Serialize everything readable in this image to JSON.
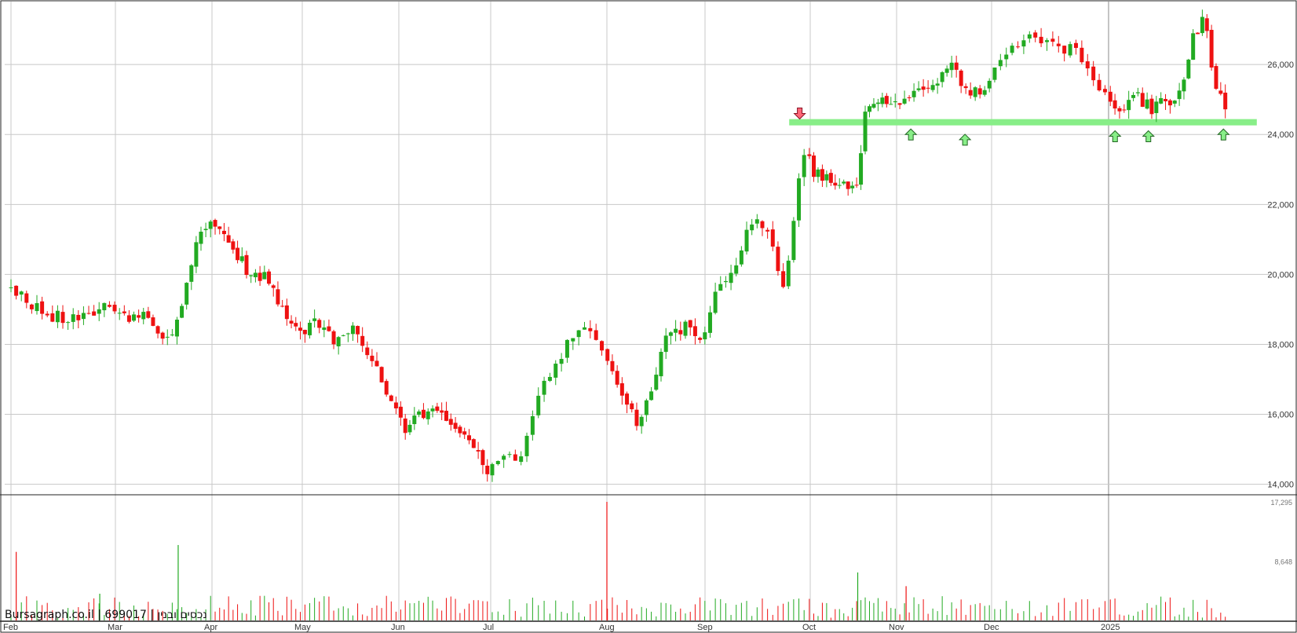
{
  "watermark": "Bursagraph.co.il | 699017 | נכסים ובנין",
  "chart_data": {
    "type": "candlestick",
    "title": "",
    "x_axis": {
      "tick_labels": [
        "Feb",
        "Mar",
        "Apr",
        "May",
        "Jun",
        "Jul",
        "Aug",
        "Sep",
        "Oct",
        "Nov",
        "Dec",
        "2025"
      ]
    },
    "price_axis": {
      "range": [
        13700,
        27800
      ],
      "ticks": [
        14000,
        16000,
        18000,
        20000,
        22000,
        24000,
        26000
      ],
      "tick_labels": [
        "14,000",
        "16,000",
        "18,000",
        "20,000",
        "22,000",
        "24,000",
        "26,000"
      ],
      "position": "right"
    },
    "volume_axis": {
      "range": [
        0,
        17295
      ],
      "ticks": [
        8648,
        17295
      ],
      "tick_labels": [
        "8,648",
        "17,295"
      ],
      "position": "right"
    },
    "grid": true,
    "colors": {
      "up": "#22aa22",
      "down": "#ee1111",
      "support_line": "#88ee88",
      "arrow_fill": "#88ee88",
      "arrow_sell": "#ff6677",
      "grid": "#c8c8c8"
    },
    "support_level": {
      "value": 24350,
      "from_month": "Sep",
      "to_month": "2025"
    },
    "signals": [
      {
        "type": "sell",
        "month_index": 7.9,
        "price": 24600
      },
      {
        "type": "buy",
        "month_index": 9.15,
        "price": 24000
      },
      {
        "type": "buy",
        "month_index": 9.72,
        "price": 23850
      },
      {
        "type": "buy",
        "month_index": 11.07,
        "price": 23950
      },
      {
        "type": "buy",
        "month_index": 11.43,
        "price": 23950
      },
      {
        "type": "buy",
        "month_index": 12.24,
        "price": 24000
      }
    ],
    "price_path": [
      [
        0,
        19600
      ],
      [
        0.3,
        18900
      ],
      [
        0.6,
        18700
      ],
      [
        0.9,
        19100
      ],
      [
        1.1,
        18700
      ],
      [
        1.3,
        19000
      ],
      [
        1.45,
        18400
      ],
      [
        1.6,
        18200
      ],
      [
        1.75,
        19700
      ],
      [
        1.9,
        21500
      ],
      [
        2.05,
        21400
      ],
      [
        2.2,
        20800
      ],
      [
        2.4,
        20100
      ],
      [
        2.6,
        19900
      ],
      [
        2.8,
        18900
      ],
      [
        3.0,
        18300
      ],
      [
        3.15,
        18700
      ],
      [
        3.3,
        18100
      ],
      [
        3.5,
        18500
      ],
      [
        3.7,
        17700
      ],
      [
        3.9,
        16400
      ],
      [
        4.05,
        15600
      ],
      [
        4.2,
        15900
      ],
      [
        4.4,
        16300
      ],
      [
        4.55,
        15700
      ],
      [
        4.8,
        15300
      ],
      [
        4.95,
        14100
      ],
      [
        5.1,
        14800
      ],
      [
        5.25,
        14700
      ],
      [
        5.4,
        16500
      ],
      [
        5.55,
        17300
      ],
      [
        5.7,
        18200
      ],
      [
        5.85,
        18400
      ],
      [
        6.0,
        17700
      ],
      [
        6.15,
        16600
      ],
      [
        6.3,
        15700
      ],
      [
        6.45,
        16800
      ],
      [
        6.6,
        18200
      ],
      [
        6.8,
        18500
      ],
      [
        6.95,
        18000
      ],
      [
        7.1,
        19500
      ],
      [
        7.3,
        20400
      ],
      [
        7.45,
        21600
      ],
      [
        7.6,
        21200
      ],
      [
        7.75,
        19600
      ],
      [
        7.85,
        21800
      ],
      [
        7.95,
        23700
      ],
      [
        8.05,
        22900
      ],
      [
        8.2,
        22700
      ],
      [
        8.35,
        22500
      ],
      [
        8.55,
        22700
      ],
      [
        8.65,
        24800
      ],
      [
        8.8,
        24900
      ],
      [
        8.95,
        24900
      ],
      [
        9.2,
        25100
      ],
      [
        9.4,
        25300
      ],
      [
        9.55,
        26100
      ],
      [
        9.75,
        25200
      ],
      [
        9.9,
        25300
      ],
      [
        10.1,
        26300
      ],
      [
        10.3,
        26800
      ],
      [
        10.5,
        26500
      ],
      [
        10.7,
        26400
      ],
      [
        10.85,
        25600
      ],
      [
        11.0,
        25000
      ],
      [
        11.15,
        24500
      ],
      [
        11.3,
        25200
      ],
      [
        11.45,
        24700
      ],
      [
        11.6,
        25100
      ],
      [
        11.75,
        24900
      ],
      [
        11.9,
        26800
      ],
      [
        12.05,
        27300
      ],
      [
        12.15,
        25300
      ],
      [
        12.25,
        24900
      ]
    ],
    "volume_spikes": [
      {
        "month_index": 0.05,
        "volume": 10000,
        "dir": "down"
      },
      {
        "month_index": 1.65,
        "volume": 11000,
        "dir": "up"
      },
      {
        "month_index": 6.0,
        "volume": 17295,
        "dir": "down"
      },
      {
        "month_index": 8.55,
        "volume": 7000,
        "dir": "up"
      },
      {
        "month_index": 0.85,
        "volume": 3900,
        "dir": "up"
      },
      {
        "month_index": 9.1,
        "volume": 5000,
        "dir": "down"
      }
    ]
  }
}
